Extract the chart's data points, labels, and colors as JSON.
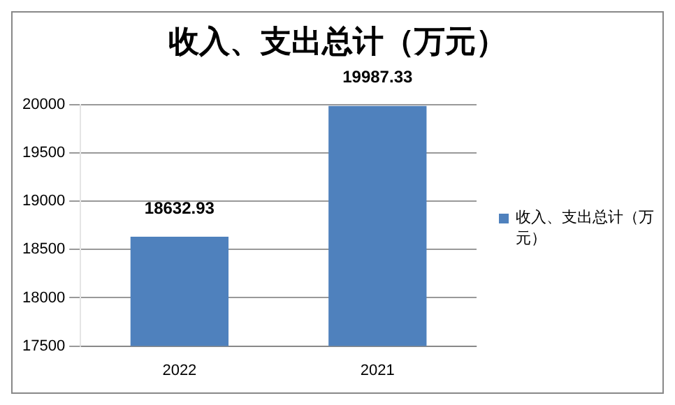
{
  "chart_data": {
    "type": "bar",
    "title": "收入、支出总计（万元）",
    "categories": [
      "2022",
      "2021"
    ],
    "series": [
      {
        "name": "收入、支出总计（万元）",
        "color": "#4f81bd",
        "values": [
          18632.93,
          19987.33
        ]
      }
    ],
    "ylim": [
      17500,
      20000
    ],
    "yticks": [
      17500,
      18000,
      18500,
      19000,
      19500,
      20000
    ],
    "grid": "y",
    "legend": "right",
    "data_labels": true
  }
}
